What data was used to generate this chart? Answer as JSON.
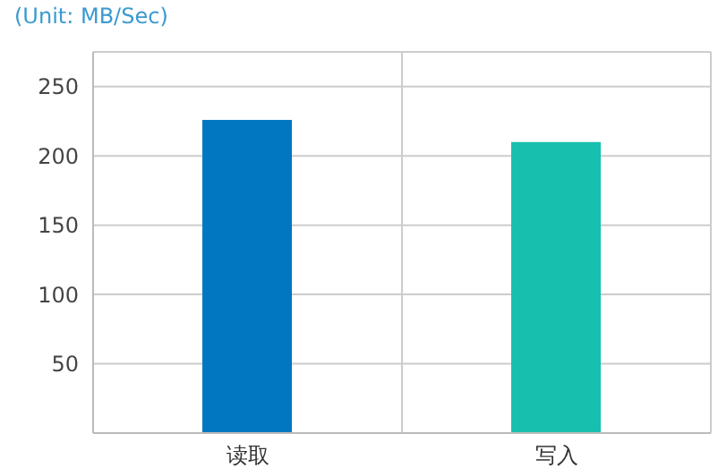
{
  "chart_data": {
    "type": "bar",
    "title": "(Unit: MB/Sec)",
    "categories": [
      "读取",
      "写入"
    ],
    "values": [
      226,
      210
    ],
    "colors": [
      "#0077c0",
      "#17bfae"
    ],
    "ylim": [
      0,
      275
    ],
    "yticks": [
      50,
      100,
      150,
      200,
      250
    ],
    "grid": true
  }
}
